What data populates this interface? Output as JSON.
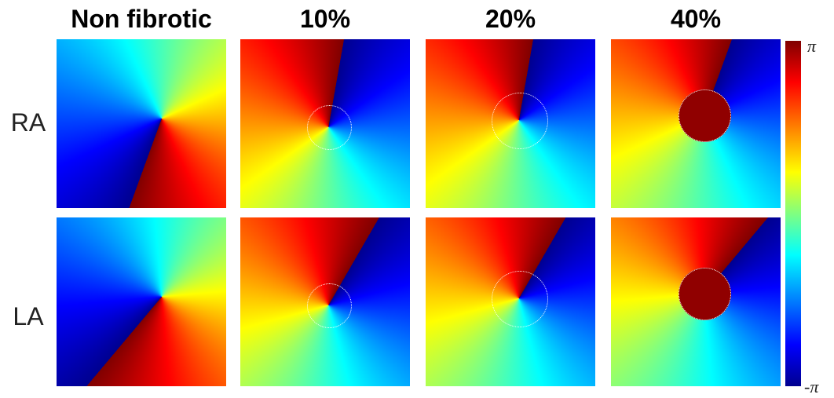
{
  "column_titles": [
    "Non fibrotic",
    "10%",
    "20%",
    "40%"
  ],
  "row_labels": [
    "RA",
    "LA"
  ],
  "colorbar": {
    "max_label": "π",
    "min_label": "-π"
  }
}
